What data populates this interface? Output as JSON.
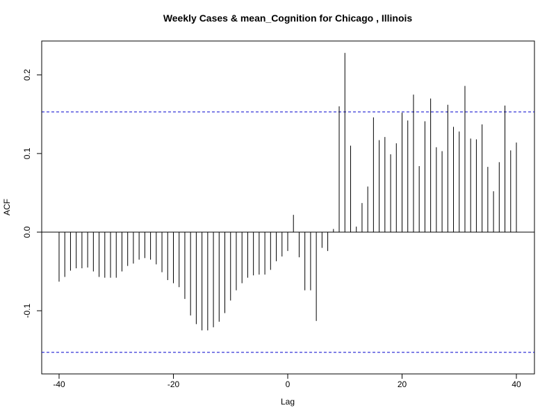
{
  "chart_data": {
    "type": "bar",
    "title": "Weekly Cases & mean_Cognition for Chicago , Illinois",
    "xlabel": "Lag",
    "ylabel": "ACF",
    "xlim": [
      -40,
      40
    ],
    "ylim": [
      -0.155,
      0.235
    ],
    "x_ticks": [
      -40,
      -20,
      0,
      20,
      40
    ],
    "x_tick_labels": [
      "-40",
      "-20",
      "0",
      "20",
      "40"
    ],
    "y_ticks": [
      -0.1,
      0.0,
      0.1,
      0.2
    ],
    "y_tick_labels": [
      "-0.1",
      "0.0",
      "0.1",
      "0.2"
    ],
    "confidence_bound": 0.153,
    "confidence_line_color": "#0000cc",
    "bar_color": "#000000",
    "grid": false,
    "lags": [
      -40,
      -39,
      -38,
      -37,
      -36,
      -35,
      -34,
      -33,
      -32,
      -31,
      -30,
      -29,
      -28,
      -27,
      -26,
      -25,
      -24,
      -23,
      -22,
      -21,
      -20,
      -19,
      -18,
      -17,
      -16,
      -15,
      -14,
      -13,
      -12,
      -11,
      -10,
      -9,
      -8,
      -7,
      -6,
      -5,
      -4,
      -3,
      -2,
      -1,
      0,
      1,
      2,
      3,
      4,
      5,
      6,
      7,
      8,
      9,
      10,
      11,
      12,
      13,
      14,
      15,
      16,
      17,
      18,
      19,
      20,
      21,
      22,
      23,
      24,
      25,
      26,
      27,
      28,
      29,
      30,
      31,
      32,
      33,
      34,
      35,
      36,
      37,
      38,
      39,
      40
    ],
    "values": [
      -0.063,
      -0.057,
      -0.049,
      -0.046,
      -0.046,
      -0.045,
      -0.05,
      -0.057,
      -0.058,
      -0.058,
      -0.058,
      -0.05,
      -0.043,
      -0.04,
      -0.035,
      -0.033,
      -0.035,
      -0.041,
      -0.051,
      -0.061,
      -0.065,
      -0.07,
      -0.085,
      -0.106,
      -0.117,
      -0.125,
      -0.125,
      -0.121,
      -0.114,
      -0.103,
      -0.087,
      -0.074,
      -0.065,
      -0.058,
      -0.055,
      -0.054,
      -0.054,
      -0.048,
      -0.037,
      -0.031,
      -0.024,
      0.022,
      -0.032,
      -0.074,
      -0.074,
      -0.113,
      -0.02,
      -0.024,
      0.004,
      0.16,
      0.228,
      0.11,
      0.007,
      0.037,
      0.058,
      0.146,
      0.117,
      0.121,
      0.099,
      0.113,
      0.152,
      0.142,
      0.175,
      0.084,
      0.141,
      0.17,
      0.108,
      0.103,
      0.162,
      0.134,
      0.128,
      0.186,
      0.119,
      0.118,
      0.137,
      0.083,
      0.052,
      0.089,
      0.161,
      0.104,
      0.114
    ]
  }
}
